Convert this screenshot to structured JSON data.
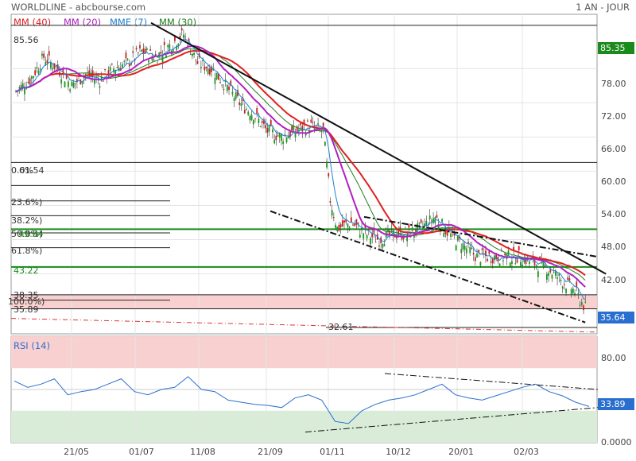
{
  "header": {
    "title": "WORLDLINE - abcbourse.com",
    "period": "1 AN - JOUR"
  },
  "legend": [
    {
      "label": "MM (40)",
      "color": "#e02020"
    },
    {
      "label": "MM (20)",
      "color": "#b020c0"
    },
    {
      "label": "MME (7)",
      "color": "#2080d0"
    },
    {
      "label": "MM (30)",
      "color": "#208020"
    }
  ],
  "rsi_label": "RSI (14)",
  "price_badge": {
    "value": "85.35",
    "color": "#1a8a1a"
  },
  "last_badge": {
    "value": "35.64",
    "color": "#2a6fd0"
  },
  "rsi_badge": {
    "value": "33.89",
    "color": "#2a6fd0"
  },
  "levels": [
    {
      "label": "85.56",
      "value": 85.56
    },
    {
      "label": "61.54",
      "value": 61.54
    },
    {
      "label": "49.84",
      "value": 49.84
    },
    {
      "label": "43.22",
      "value": 43.22
    },
    {
      "label": "38.35",
      "value": 38.35
    },
    {
      "label": "35.89",
      "value": 35.89
    },
    {
      "label": "32.61",
      "value": 32.61
    }
  ],
  "fib_labels": [
    "0.0%",
    "23.6%)",
    "38.2%)",
    "50.0%)",
    "61.8%)",
    "100.0%)"
  ],
  "chart_data": [
    {
      "type": "candlestick",
      "title": "WORLDLINE",
      "x_ticks": [
        "21/05",
        "01/07",
        "11/08",
        "21/09",
        "01/11",
        "10/12",
        "20/01",
        "02/03"
      ],
      "y_ticks": [
        78.0,
        72.0,
        66.0,
        60.0,
        54.0,
        48.0,
        42.0
      ],
      "ylim": [
        31.5,
        87.5
      ],
      "series_names": [
        "MM (40)",
        "MM (20)",
        "MME (7)",
        "MM (30)"
      ],
      "close_path": [
        [
          0,
          74
        ],
        [
          8,
          76
        ],
        [
          16,
          80
        ],
        [
          24,
          78
        ],
        [
          32,
          75
        ],
        [
          40,
          77
        ],
        [
          48,
          76
        ],
        [
          56,
          78
        ],
        [
          64,
          79
        ],
        [
          72,
          81
        ],
        [
          80,
          80
        ],
        [
          88,
          82
        ],
        [
          96,
          84
        ],
        [
          104,
          79
        ],
        [
          112,
          78
        ],
        [
          120,
          75
        ],
        [
          128,
          72
        ],
        [
          136,
          70
        ],
        [
          144,
          67
        ],
        [
          152,
          66
        ],
        [
          160,
          67
        ],
        [
          168,
          68
        ],
        [
          176,
          67
        ],
        [
          180,
          55
        ],
        [
          184,
          50
        ],
        [
          192,
          51
        ],
        [
          200,
          49
        ],
        [
          208,
          48
        ],
        [
          216,
          49
        ],
        [
          224,
          49
        ],
        [
          232,
          50
        ],
        [
          240,
          52
        ],
        [
          248,
          49
        ],
        [
          256,
          47
        ],
        [
          264,
          45
        ],
        [
          272,
          45
        ],
        [
          280,
          45
        ],
        [
          288,
          45
        ],
        [
          296,
          44
        ],
        [
          304,
          43
        ],
        [
          312,
          41
        ],
        [
          320,
          39
        ],
        [
          326,
          36
        ]
      ],
      "resistance": [
        [
          0,
          86
        ],
        [
          326,
          42
        ]
      ],
      "support": [
        [
          138,
          50.5
        ],
        [
          326,
          33.5
        ]
      ],
      "upper_channel": [
        [
          148,
          52
        ],
        [
          326,
          45
        ]
      ]
    },
    {
      "type": "line",
      "title": "RSI (14)",
      "y_ticks": [
        80.0,
        0.0
      ],
      "ylim": [
        0,
        100
      ],
      "values": [
        58,
        52,
        55,
        60,
        45,
        48,
        50,
        55,
        60,
        48,
        45,
        50,
        52,
        62,
        50,
        48,
        40,
        38,
        36,
        35,
        33,
        42,
        45,
        40,
        20,
        18,
        30,
        36,
        40,
        42,
        45,
        50,
        55,
        45,
        42,
        40,
        44,
        48,
        52,
        55,
        48,
        44,
        38,
        34
      ]
    }
  ]
}
